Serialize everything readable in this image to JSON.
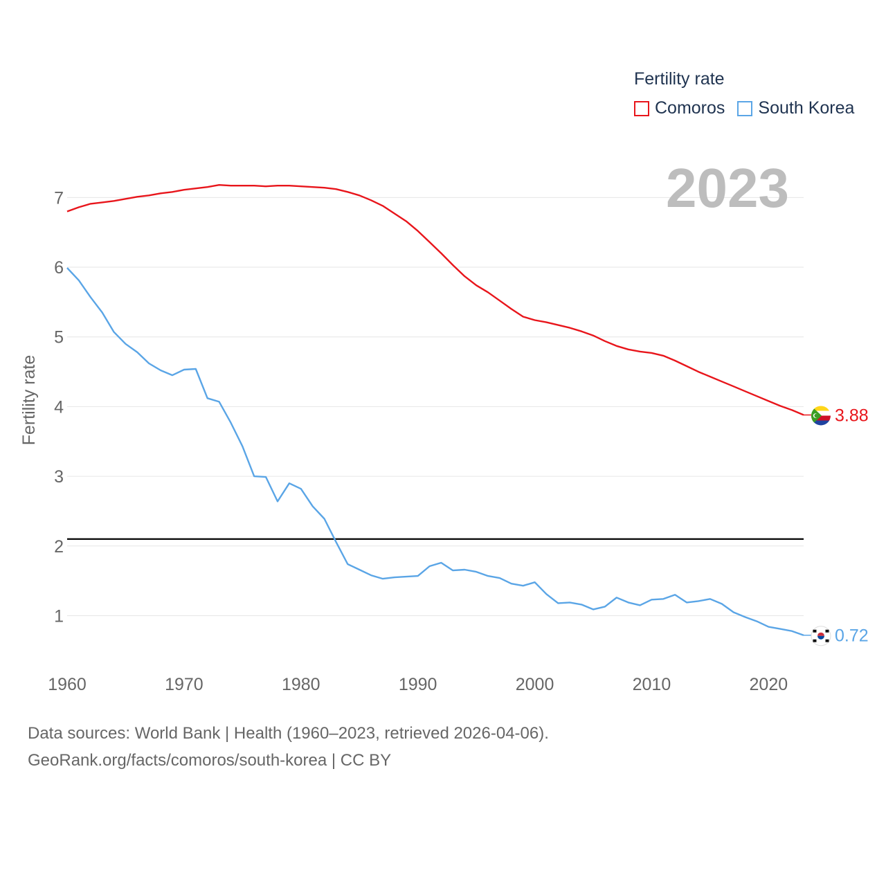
{
  "legend": {
    "title": "Fertility rate",
    "items": [
      {
        "label": "Comoros",
        "color": "#e8151b"
      },
      {
        "label": "South Korea",
        "color": "#5aa5e6"
      }
    ]
  },
  "year_label": "2023",
  "footer": {
    "line1": "Data sources: World Bank | Health (1960–2023, retrieved 2026-04-06).",
    "line2": "GeoRank.org/facts/comoros/south-korea | CC BY"
  },
  "chart_data": {
    "type": "line",
    "title": "Fertility rate",
    "xlabel": "",
    "ylabel": "Fertility rate",
    "xlim": [
      1960,
      2023
    ],
    "ylim": [
      0.3,
      7.45
    ],
    "x_ticks": [
      1960,
      1970,
      1980,
      1990,
      2000,
      2010,
      2020
    ],
    "y_ticks": [
      1,
      2,
      3,
      4,
      5,
      6,
      7
    ],
    "grid": true,
    "legend_position": "top-right",
    "reference_line": {
      "y": 2.1,
      "color": "#000000"
    },
    "series": [
      {
        "name": "Comoros",
        "color": "#e8151b",
        "end_label": "3.88",
        "flag_icon": "comoros-flag-icon",
        "x_start": 1960,
        "values": [
          6.8,
          6.86,
          6.91,
          6.93,
          6.95,
          6.98,
          7.01,
          7.03,
          7.06,
          7.08,
          7.11,
          7.13,
          7.15,
          7.18,
          7.17,
          7.17,
          7.17,
          7.16,
          7.17,
          7.17,
          7.16,
          7.15,
          7.14,
          7.12,
          7.08,
          7.03,
          6.96,
          6.88,
          6.77,
          6.66,
          6.52,
          6.36,
          6.2,
          6.03,
          5.87,
          5.74,
          5.64,
          5.52,
          5.4,
          5.29,
          5.24,
          5.21,
          5.17,
          5.13,
          5.08,
          5.02,
          4.94,
          4.87,
          4.82,
          4.79,
          4.77,
          4.73,
          4.66,
          4.58,
          4.5,
          4.43,
          4.36,
          4.29,
          4.22,
          4.15,
          4.08,
          4.01,
          3.95,
          3.88
        ]
      },
      {
        "name": "South Korea",
        "color": "#5aa5e6",
        "end_label": "0.72",
        "flag_icon": "south-korea-flag-icon",
        "x_start": 1960,
        "values": [
          5.99,
          5.81,
          5.57,
          5.35,
          5.07,
          4.9,
          4.78,
          4.62,
          4.52,
          4.45,
          4.53,
          4.54,
          4.12,
          4.07,
          3.77,
          3.43,
          3.0,
          2.99,
          2.64,
          2.9,
          2.82,
          2.57,
          2.39,
          2.06,
          1.74,
          1.66,
          1.58,
          1.53,
          1.55,
          1.56,
          1.57,
          1.71,
          1.76,
          1.65,
          1.66,
          1.63,
          1.57,
          1.54,
          1.46,
          1.43,
          1.48,
          1.31,
          1.18,
          1.19,
          1.16,
          1.09,
          1.13,
          1.26,
          1.19,
          1.15,
          1.23,
          1.24,
          1.3,
          1.19,
          1.21,
          1.24,
          1.17,
          1.05,
          0.98,
          0.92,
          0.84,
          0.81,
          0.78,
          0.72
        ]
      }
    ]
  }
}
